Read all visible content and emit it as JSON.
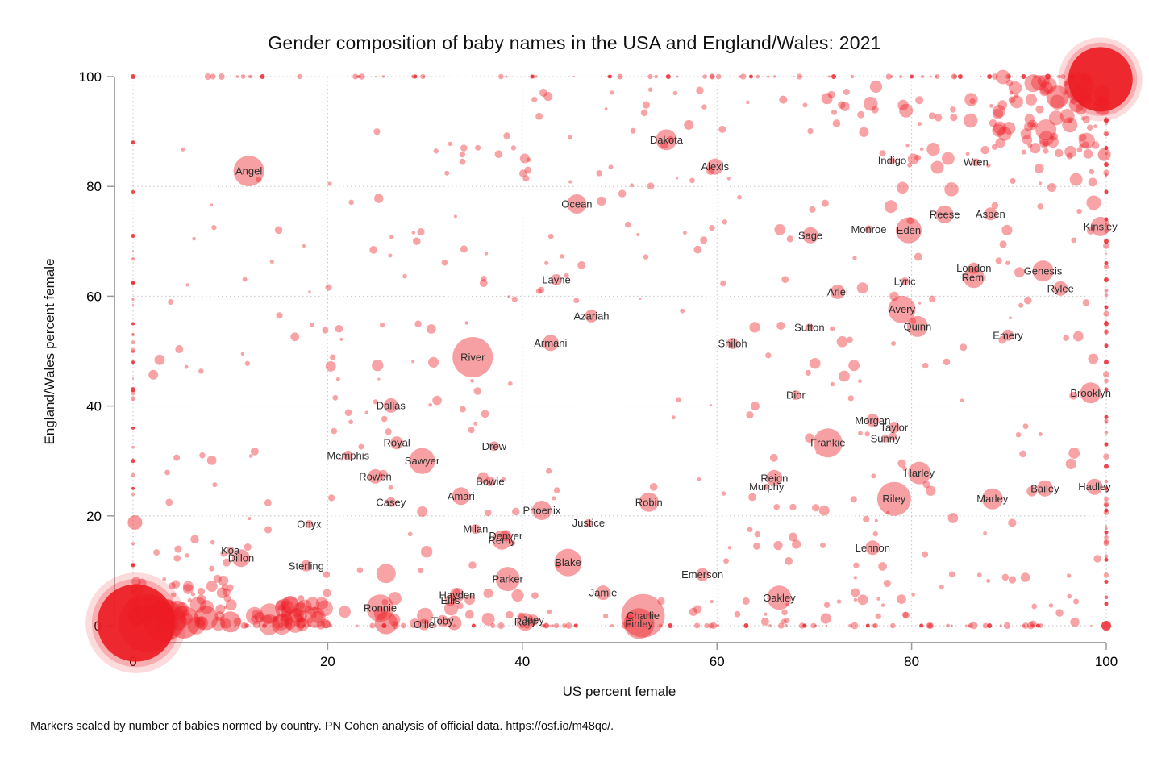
{
  "title": "Gender composition of baby names in the USA and England/Wales: 2021",
  "footer": "Markers scaled by number of babies normed by country. PN Cohen analysis of official data. https://osf.io/m48qc/.",
  "chart_data": {
    "type": "scatter",
    "title": "Gender composition of baby names in the USA and England/Wales: 2021",
    "xlabel": "US percent female",
    "ylabel": "England/Wales percent female",
    "xlim": [
      0,
      100
    ],
    "ylim": [
      0,
      100
    ],
    "x_ticks": [
      0,
      20,
      40,
      60,
      80,
      100
    ],
    "y_ticks": [
      0,
      20,
      40,
      60,
      80,
      100
    ],
    "grid": "dotted-both-axes",
    "legend": "none",
    "marker_color": "#ed1c24",
    "marker_opacity": 0.42,
    "note": "Bubble area = number of babies normed by country; dense saturated masses at (0,0) and (100,100); dotted bands of names along all four edges (0% or 100% female in one country)",
    "labeled_points": [
      {
        "name": "Angel",
        "x": 11.9,
        "y": 82.8,
        "r": 19
      },
      {
        "name": "Dakota",
        "x": 54.8,
        "y": 88.5,
        "r": 13
      },
      {
        "name": "Alexis",
        "x": 59.8,
        "y": 83.6,
        "r": 10
      },
      {
        "name": "Indigo",
        "x": 78.0,
        "y": 84.7,
        "r": 4
      },
      {
        "name": "Wren",
        "x": 86.6,
        "y": 84.4,
        "r": 5
      },
      {
        "name": "Ocean",
        "x": 45.6,
        "y": 76.8,
        "r": 12
      },
      {
        "name": "Reese",
        "x": 83.4,
        "y": 74.9,
        "r": 11
      },
      {
        "name": "Aspen",
        "x": 88.1,
        "y": 75.0,
        "r": 8
      },
      {
        "name": "Kinsley",
        "x": 99.4,
        "y": 72.7,
        "r": 12
      },
      {
        "name": "Sage",
        "x": 69.6,
        "y": 71.1,
        "r": 10
      },
      {
        "name": "Monroe",
        "x": 75.6,
        "y": 72.2,
        "r": 5
      },
      {
        "name": "Eden",
        "x": 79.7,
        "y": 72.0,
        "r": 16
      },
      {
        "name": "London",
        "x": 86.4,
        "y": 65.1,
        "r": 7
      },
      {
        "name": "Remi",
        "x": 86.4,
        "y": 63.4,
        "r": 13
      },
      {
        "name": "Genesis",
        "x": 93.5,
        "y": 64.6,
        "r": 13
      },
      {
        "name": "Rylee",
        "x": 95.3,
        "y": 61.4,
        "r": 9
      },
      {
        "name": "Lyric",
        "x": 79.3,
        "y": 62.7,
        "r": 5
      },
      {
        "name": "Ariel",
        "x": 72.4,
        "y": 60.8,
        "r": 9
      },
      {
        "name": "Layne",
        "x": 43.5,
        "y": 63.0,
        "r": 7
      },
      {
        "name": "Azariah",
        "x": 47.1,
        "y": 56.4,
        "r": 8
      },
      {
        "name": "Avery",
        "x": 79.0,
        "y": 57.6,
        "r": 17
      },
      {
        "name": "Quinn",
        "x": 80.6,
        "y": 54.5,
        "r": 13
      },
      {
        "name": "Sutton",
        "x": 69.5,
        "y": 54.3,
        "r": 5
      },
      {
        "name": "Emery",
        "x": 89.9,
        "y": 52.9,
        "r": 7
      },
      {
        "name": "Armani",
        "x": 42.9,
        "y": 51.5,
        "r": 10
      },
      {
        "name": "Shiloh",
        "x": 61.6,
        "y": 51.4,
        "r": 7
      },
      {
        "name": "River",
        "x": 34.9,
        "y": 48.9,
        "r": 25
      },
      {
        "name": "Dior",
        "x": 68.1,
        "y": 42.0,
        "r": 6
      },
      {
        "name": "Brooklyn",
        "x": 98.4,
        "y": 42.4,
        "r": 13
      },
      {
        "name": "Dallas",
        "x": 26.5,
        "y": 40.1,
        "r": 9
      },
      {
        "name": "Morgan",
        "x": 76.0,
        "y": 37.4,
        "r": 8
      },
      {
        "name": "Taylor",
        "x": 78.2,
        "y": 36.1,
        "r": 7
      },
      {
        "name": "Sunny",
        "x": 77.3,
        "y": 34.1,
        "r": 5
      },
      {
        "name": "Royal",
        "x": 27.1,
        "y": 33.3,
        "r": 8
      },
      {
        "name": "Drew",
        "x": 37.1,
        "y": 32.7,
        "r": 6
      },
      {
        "name": "Frankie",
        "x": 71.4,
        "y": 33.3,
        "r": 18
      },
      {
        "name": "Memphis",
        "x": 22.1,
        "y": 31.0,
        "r": 6
      },
      {
        "name": "Sawyer",
        "x": 29.7,
        "y": 30.0,
        "r": 16
      },
      {
        "name": "Harley",
        "x": 80.8,
        "y": 27.8,
        "r": 14
      },
      {
        "name": "Rowen",
        "x": 24.9,
        "y": 27.2,
        "r": 9
      },
      {
        "name": "Bowie",
        "x": 36.7,
        "y": 26.3,
        "r": 6
      },
      {
        "name": "Reign",
        "x": 65.9,
        "y": 26.9,
        "r": 10
      },
      {
        "name": "Murphy",
        "x": 65.1,
        "y": 25.3,
        "r": 4
      },
      {
        "name": "Bailey",
        "x": 93.7,
        "y": 25.0,
        "r": 10
      },
      {
        "name": "Hadley",
        "x": 98.8,
        "y": 25.3,
        "r": 10
      },
      {
        "name": "Riley",
        "x": 78.2,
        "y": 23.1,
        "r": 21
      },
      {
        "name": "Amari",
        "x": 33.7,
        "y": 23.6,
        "r": 11
      },
      {
        "name": "Marley",
        "x": 88.3,
        "y": 23.1,
        "r": 13
      },
      {
        "name": "Casey",
        "x": 26.5,
        "y": 22.5,
        "r": 6
      },
      {
        "name": "Phoenix",
        "x": 42.0,
        "y": 21.0,
        "r": 12
      },
      {
        "name": "Robin",
        "x": 53.0,
        "y": 22.5,
        "r": 12
      },
      {
        "name": "Justice",
        "x": 46.8,
        "y": 18.7,
        "r": 5
      },
      {
        "name": "Onyx",
        "x": 18.1,
        "y": 18.5,
        "r": 5
      },
      {
        "name": "Milan",
        "x": 35.2,
        "y": 17.6,
        "r": 6
      },
      {
        "name": "Denver",
        "x": 38.3,
        "y": 16.4,
        "r": 7
      },
      {
        "name": "Remy",
        "x": 37.9,
        "y": 15.6,
        "r": 12
      },
      {
        "name": "Koa",
        "x": 10.0,
        "y": 13.7,
        "r": 5
      },
      {
        "name": "Dillon",
        "x": 11.1,
        "y": 12.3,
        "r": 11
      },
      {
        "name": "Blake",
        "x": 44.7,
        "y": 11.5,
        "r": 17
      },
      {
        "name": "Lennon",
        "x": 76.0,
        "y": 14.2,
        "r": 9
      },
      {
        "name": "Sterling",
        "x": 17.8,
        "y": 10.9,
        "r": 7
      },
      {
        "name": "Emerson",
        "x": 58.5,
        "y": 9.3,
        "r": 8
      },
      {
        "name": "Parker",
        "x": 38.5,
        "y": 8.5,
        "r": 15
      },
      {
        "name": "Jamie",
        "x": 48.3,
        "y": 6.0,
        "r": 9
      },
      {
        "name": "Hayden",
        "x": 33.3,
        "y": 5.6,
        "r": 9
      },
      {
        "name": "Ellis",
        "x": 32.6,
        "y": 4.6,
        "r": 7
      },
      {
        "name": "Oakley",
        "x": 66.4,
        "y": 5.1,
        "r": 15
      },
      {
        "name": "Ronnie",
        "x": 25.4,
        "y": 3.2,
        "r": 17
      },
      {
        "name": "Charlie",
        "x": 52.4,
        "y": 1.8,
        "r": 27
      },
      {
        "name": "Finley",
        "x": 52.0,
        "y": 0.4,
        "r": 19
      },
      {
        "name": "Rory",
        "x": 40.3,
        "y": 0.7,
        "r": 11
      },
      {
        "name": "Joey",
        "x": 41.1,
        "y": 1.0,
        "r": 7
      },
      {
        "name": "Toby",
        "x": 31.8,
        "y": 0.9,
        "r": 7
      },
      {
        "name": "Ollie",
        "x": 29.9,
        "y": 0.2,
        "r": 7
      }
    ],
    "blobs": [
      {
        "x": 0.3,
        "y": 0.5,
        "r": 48,
        "o": 0.92,
        "halo": true
      },
      {
        "x": 1.5,
        "y": 0.5,
        "r": 36,
        "o": 0.55
      },
      {
        "x": 3.2,
        "y": 1.0,
        "r": 26,
        "o": 0.5
      },
      {
        "x": 5.2,
        "y": 0.6,
        "r": 20,
        "o": 0.5
      },
      {
        "x": 7.5,
        "y": 1.4,
        "r": 15,
        "o": 0.45
      },
      {
        "x": 10.0,
        "y": 0.7,
        "r": 13,
        "o": 0.45
      },
      {
        "x": 12.5,
        "y": 1.8,
        "r": 11,
        "o": 0.4
      },
      {
        "x": 15.2,
        "y": 0.6,
        "r": 10,
        "o": 0.4
      },
      {
        "x": 18.7,
        "y": 1.5,
        "r": 13,
        "o": 0.45
      },
      {
        "x": 2.0,
        "y": 4.0,
        "r": 10,
        "o": 0.4
      },
      {
        "x": 0.4,
        "y": 6.5,
        "r": 8,
        "o": 0.45
      },
      {
        "x": 0.2,
        "y": 18.8,
        "r": 9,
        "o": 0.45
      },
      {
        "x": 26.0,
        "y": 9.5,
        "r": 12,
        "o": 0.4
      },
      {
        "x": 26.0,
        "y": 0.5,
        "r": 14,
        "o": 0.45
      },
      {
        "x": 30.0,
        "y": 1.8,
        "r": 10,
        "o": 0.4
      },
      {
        "x": 33.0,
        "y": 0.5,
        "r": 9,
        "o": 0.42
      },
      {
        "x": 36.5,
        "y": 1.2,
        "r": 8,
        "o": 0.4
      },
      {
        "x": 99.4,
        "y": 99.5,
        "r": 40,
        "o": 0.92,
        "halo": true
      },
      {
        "x": 97.2,
        "y": 98.2,
        "r": 18,
        "o": 0.5
      },
      {
        "x": 95.0,
        "y": 96.3,
        "r": 14,
        "o": 0.45
      },
      {
        "x": 92.5,
        "y": 98.8,
        "r": 11,
        "o": 0.4
      },
      {
        "x": 99.6,
        "y": 94.6,
        "r": 11,
        "o": 0.5
      },
      {
        "x": 96.0,
        "y": 92.8,
        "r": 9,
        "o": 0.4
      },
      {
        "x": 93.8,
        "y": 90.3,
        "r": 13,
        "o": 0.4
      },
      {
        "x": 98.0,
        "y": 88.3,
        "r": 10,
        "o": 0.4
      },
      {
        "x": 99.8,
        "y": 85.8,
        "r": 8,
        "o": 0.45
      },
      {
        "x": 90.8,
        "y": 95.4,
        "r": 8,
        "o": 0.4
      },
      {
        "x": 57.1,
        "y": 91.2,
        "r": 6,
        "o": 0.42
      },
      {
        "x": 71.3,
        "y": 96.0,
        "r": 7,
        "o": 0.42
      },
      {
        "x": 66.8,
        "y": 95.8,
        "r": 5,
        "o": 0.42
      }
    ],
    "accent_points": [
      [
        0,
        100,
        3
      ],
      [
        13.3,
        100,
        3
      ],
      [
        29,
        100,
        2.5
      ],
      [
        41,
        100,
        2.5
      ],
      [
        49,
        100,
        2.5
      ],
      [
        55,
        100,
        3
      ],
      [
        63.5,
        100,
        2.5
      ],
      [
        72,
        100,
        3
      ],
      [
        80,
        100,
        2.5
      ],
      [
        85,
        100,
        3
      ],
      [
        88,
        100,
        3
      ],
      [
        91.5,
        100,
        3
      ],
      [
        94,
        100,
        3.5
      ],
      [
        96.5,
        100,
        3
      ],
      [
        0,
        88,
        2.5
      ],
      [
        0,
        79,
        2
      ],
      [
        0,
        71,
        2.5
      ],
      [
        0,
        62.5,
        2.5
      ],
      [
        0,
        55,
        2
      ],
      [
        0,
        48,
        2
      ],
      [
        0,
        43,
        3
      ],
      [
        0,
        36,
        2
      ],
      [
        0,
        30,
        2.5
      ],
      [
        0,
        25,
        2
      ],
      [
        0,
        11,
        2.5
      ],
      [
        100,
        92,
        3
      ],
      [
        100,
        87,
        2.5
      ],
      [
        100,
        84,
        3
      ],
      [
        100,
        79,
        2.5
      ],
      [
        100,
        74,
        2.5
      ],
      [
        100,
        70,
        3
      ],
      [
        100,
        66,
        2.5
      ],
      [
        100,
        63,
        3
      ],
      [
        100,
        58,
        2.5
      ],
      [
        100,
        55,
        3
      ],
      [
        100,
        51,
        2.5
      ],
      [
        100,
        48,
        3
      ],
      [
        100,
        43,
        2.5
      ],
      [
        100,
        38,
        2.5
      ],
      [
        100,
        33,
        2.5
      ],
      [
        100,
        29,
        3
      ],
      [
        100,
        25,
        2.5
      ],
      [
        100,
        21,
        2.5
      ],
      [
        100,
        17,
        2.5
      ],
      [
        100,
        12,
        2.5
      ],
      [
        100,
        8,
        2.5
      ],
      [
        100,
        4,
        2.5
      ],
      [
        100,
        0,
        6
      ],
      [
        63,
        0,
        3
      ],
      [
        45.5,
        0,
        2.5
      ],
      [
        25.8,
        0,
        3
      ],
      [
        81,
        0,
        2.5
      ],
      [
        35,
        0,
        2.5
      ],
      [
        55.2,
        0,
        3
      ],
      [
        69,
        0,
        2.5
      ],
      [
        75.5,
        0,
        2.5
      ],
      [
        88,
        0,
        3
      ],
      [
        93,
        0,
        2.5
      ]
    ],
    "background": {
      "seed": 20210,
      "default_opacity": 0.4,
      "clusters": [
        {
          "n": 60,
          "x": [
            2,
            98
          ],
          "y": [
            100,
            100
          ],
          "r": [
            1,
            4
          ]
        },
        {
          "n": 65,
          "x": [
            10,
            99
          ],
          "y": [
            0,
            0
          ],
          "r": [
            1.2,
            4.5
          ]
        },
        {
          "n": 48,
          "x": [
            100,
            100
          ],
          "y": [
            2,
            98
          ],
          "r": [
            1,
            4
          ]
        },
        {
          "n": 22,
          "x": [
            0,
            0
          ],
          "y": [
            1,
            72
          ],
          "r": [
            1,
            3
          ]
        },
        {
          "n": 130,
          "x": [
            3,
            97
          ],
          "y": [
            4,
            97
          ],
          "r": [
            1.5,
            5
          ]
        },
        {
          "n": 50,
          "x": [
            55,
            99
          ],
          "y": [
            15,
            75
          ],
          "r": [
            2,
            7
          ]
        },
        {
          "n": 45,
          "x": [
            2,
            40
          ],
          "y": [
            6,
            55
          ],
          "r": [
            2,
            7.5
          ]
        },
        {
          "n": 28,
          "x": [
            25,
            60
          ],
          "y": [
            55,
            90
          ],
          "r": [
            2,
            6
          ]
        },
        {
          "n": 60,
          "x": [
            75,
            100
          ],
          "y": [
            75,
            100
          ],
          "r": [
            2,
            9
          ]
        },
        {
          "n": 45,
          "x": [
            88,
            100
          ],
          "y": [
            86,
            100
          ],
          "r": [
            2,
            10
          ]
        },
        {
          "n": 60,
          "x": [
            0,
            20
          ],
          "y": [
            0,
            4
          ],
          "r": [
            3,
            13
          ]
        },
        {
          "n": 30,
          "x": [
            15,
            42
          ],
          "y": [
            0,
            6
          ],
          "r": [
            3,
            9
          ]
        },
        {
          "n": 25,
          "x": [
            0,
            10
          ],
          "y": [
            2,
            9
          ],
          "r": [
            2,
            7
          ]
        },
        {
          "n": 35,
          "x": [
            42,
            100
          ],
          "y": [
            0,
            5
          ],
          "r": [
            2,
            7
          ]
        },
        {
          "n": 25,
          "x": [
            60,
            100
          ],
          "y": [
            5,
            20
          ],
          "r": [
            2,
            6
          ]
        },
        {
          "n": 18,
          "x": [
            40,
            75
          ],
          "y": [
            90,
            100
          ],
          "r": [
            2,
            6
          ]
        },
        {
          "n": 14,
          "x": [
            8,
            45
          ],
          "y": [
            60,
            88
          ],
          "r": [
            2,
            5
          ]
        }
      ]
    }
  }
}
